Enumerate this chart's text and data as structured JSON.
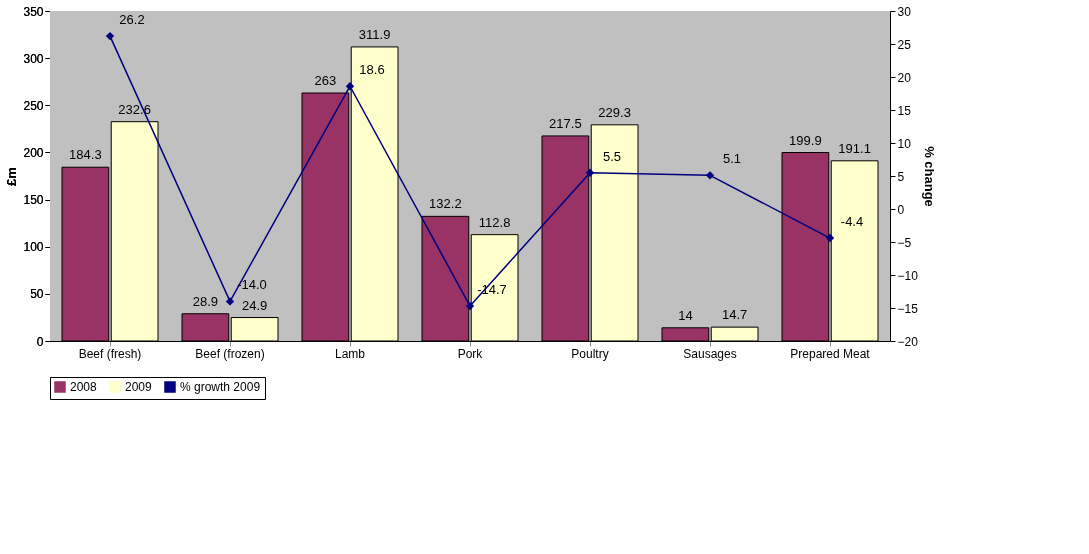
{
  "chart_data": {
    "type": "bar",
    "categories": [
      "Beef (fresh)",
      "Beef (frozen)",
      "Lamb",
      "Pork",
      "Poultry",
      "Sausages",
      "Prepared Meat"
    ],
    "ylabel": "£m",
    "y2label": "% change",
    "ylim": [
      0,
      350
    ],
    "yticks": [
      0,
      50,
      100,
      150,
      200,
      250,
      300,
      350
    ],
    "y2lim": [
      -20,
      30
    ],
    "y2ticks": [
      -20,
      -15,
      -10,
      -5,
      0,
      5,
      10,
      15,
      20,
      25,
      30
    ],
    "legend": "bottom",
    "series": [
      {
        "name": "2008",
        "color": "#993366",
        "values": [
          184.3,
          28.9,
          263,
          132.2,
          217.5,
          14,
          199.9
        ],
        "value_labels": [
          "184.3",
          "28.9",
          "263",
          "132.2",
          "217.5",
          "14",
          "199.9"
        ]
      },
      {
        "name": "2009",
        "color": "#ffffcc",
        "values": [
          232.6,
          24.9,
          311.9,
          112.8,
          229.3,
          14.7,
          191.1
        ],
        "value_labels": [
          "232.6",
          "24.9",
          "311.9",
          "112.8",
          "229.3",
          "14.7",
          "191.1"
        ]
      },
      {
        "name": "% growth 2009",
        "type": "line",
        "axis": "y2",
        "marker": "diamond",
        "line_style": "solid",
        "color": "#000080",
        "values": [
          26.2,
          -14.0,
          18.6,
          -14.7,
          5.5,
          5.1,
          -4.4
        ],
        "value_labels": [
          "26.2",
          "-14.0",
          "18.6",
          "-14.7",
          "5.5",
          "5.1",
          "-4.4"
        ]
      }
    ]
  }
}
